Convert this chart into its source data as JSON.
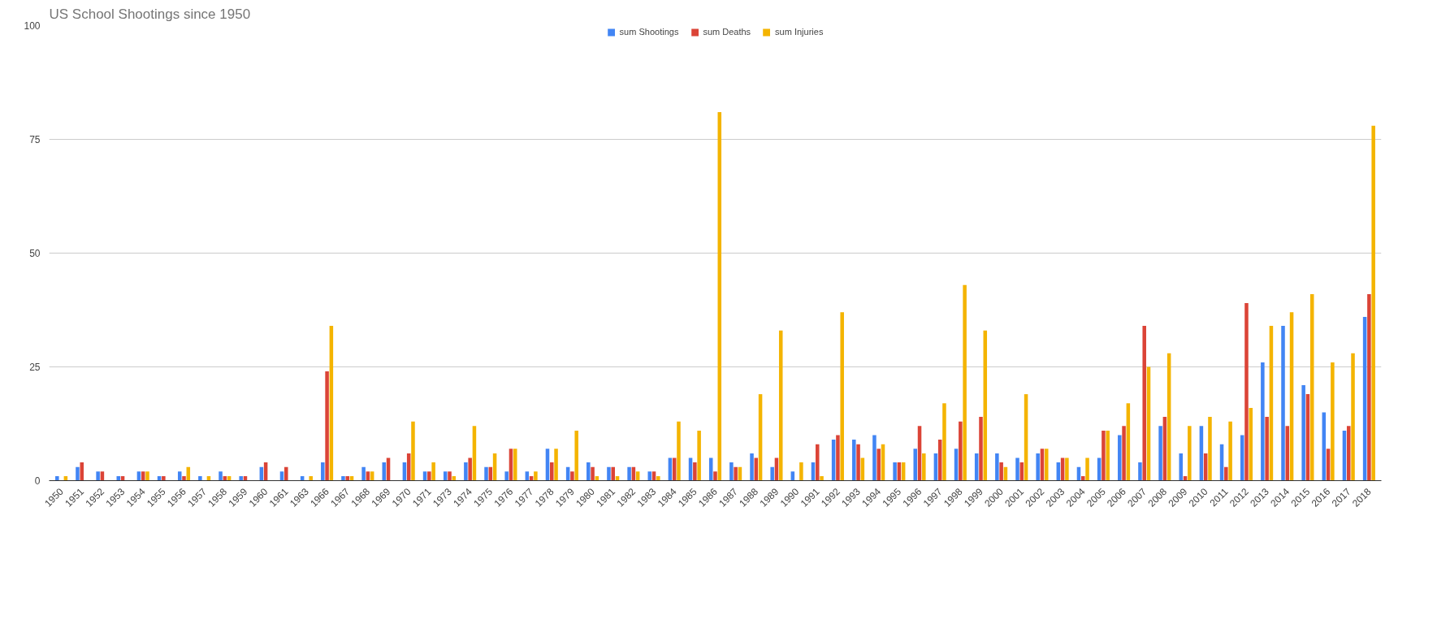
{
  "chart_data": {
    "type": "bar",
    "title": "US School Shootings since 1950",
    "categories": [
      "1950",
      "1951",
      "1952",
      "1953",
      "1954",
      "1955",
      "1956",
      "1957",
      "1958",
      "1959",
      "1960",
      "1961",
      "1963",
      "1966",
      "1967",
      "1968",
      "1969",
      "1970",
      "1971",
      "1973",
      "1974",
      "1975",
      "1976",
      "1977",
      "1978",
      "1979",
      "1980",
      "1981",
      "1982",
      "1983",
      "1984",
      "1985",
      "1986",
      "1987",
      "1988",
      "1989",
      "1990",
      "1991",
      "1992",
      "1993",
      "1994",
      "1995",
      "1996",
      "1997",
      "1998",
      "1999",
      "2000",
      "2001",
      "2002",
      "2003",
      "2004",
      "2005",
      "2006",
      "2007",
      "2008",
      "2009",
      "2010",
      "2011",
      "2012",
      "2013",
      "2014",
      "2015",
      "2016",
      "2017",
      "2018"
    ],
    "series": [
      {
        "name": "sum Shootings",
        "color": "#4285f4",
        "values": [
          1,
          3,
          2,
          1,
          2,
          1,
          2,
          1,
          2,
          1,
          3,
          2,
          1,
          4,
          1,
          3,
          4,
          4,
          2,
          2,
          4,
          3,
          2,
          2,
          7,
          3,
          4,
          3,
          3,
          2,
          5,
          5,
          5,
          4,
          6,
          3,
          2,
          4,
          9,
          9,
          10,
          4,
          7,
          6,
          7,
          6,
          6,
          5,
          6,
          4,
          3,
          5,
          10,
          4,
          12,
          6,
          12,
          8,
          10,
          26,
          34,
          21,
          15,
          11,
          36
        ]
      },
      {
        "name": "sum Deaths",
        "color": "#db4437",
        "values": [
          0,
          4,
          2,
          1,
          2,
          1,
          1,
          0,
          1,
          1,
          4,
          3,
          0,
          24,
          1,
          2,
          5,
          6,
          2,
          2,
          5,
          3,
          7,
          1,
          4,
          2,
          3,
          3,
          3,
          2,
          5,
          4,
          2,
          3,
          5,
          5,
          0,
          8,
          10,
          8,
          7,
          4,
          12,
          9,
          13,
          14,
          4,
          4,
          7,
          5,
          1,
          11,
          12,
          34,
          14,
          1,
          6,
          3,
          39,
          14,
          12,
          19,
          7,
          12,
          41
        ]
      },
      {
        "name": "sum Injuries",
        "color": "#f4b400",
        "values": [
          1,
          0,
          0,
          0,
          2,
          0,
          3,
          1,
          1,
          0,
          0,
          0,
          1,
          34,
          1,
          2,
          0,
          13,
          4,
          1,
          12,
          6,
          7,
          2,
          7,
          11,
          1,
          1,
          2,
          1,
          13,
          11,
          81,
          3,
          19,
          33,
          4,
          1,
          37,
          5,
          8,
          4,
          6,
          17,
          43,
          33,
          3,
          19,
          7,
          5,
          5,
          11,
          17,
          25,
          28,
          12,
          14,
          13,
          16,
          34,
          37,
          41,
          26,
          28,
          78
        ]
      }
    ],
    "ylim": [
      0,
      100
    ],
    "yticks": [
      0,
      25,
      50,
      75,
      100
    ],
    "grid": "y",
    "legend": "top"
  }
}
